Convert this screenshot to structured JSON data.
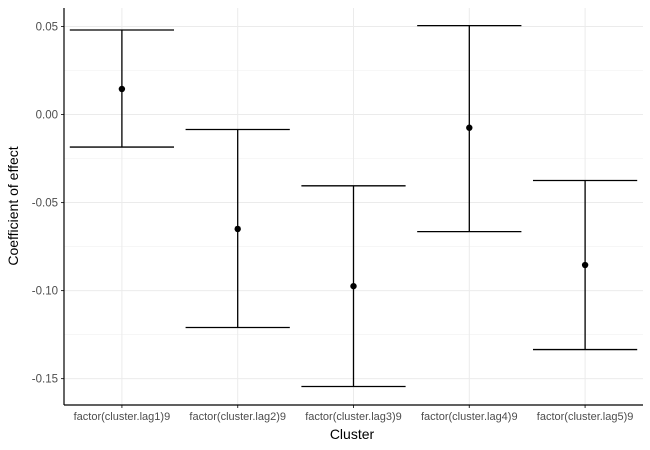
{
  "chart_data": {
    "type": "errorbar",
    "xlabel": "Cluster",
    "ylabel": "Coefficient of effect",
    "categories": [
      "factor(cluster.lag1)9",
      "factor(cluster.lag2)9",
      "factor(cluster.lag3)9",
      "factor(cluster.lag4)9",
      "factor(cluster.lag5)9"
    ],
    "estimate": [
      0.0145,
      -0.065,
      -0.0975,
      -0.0075,
      -0.0855
    ],
    "lower": [
      -0.0185,
      -0.121,
      -0.1545,
      -0.0665,
      -0.1335
    ],
    "upper": [
      0.048,
      -0.0085,
      -0.0405,
      0.0505,
      -0.0375
    ],
    "ylim": [
      -0.165,
      0.0605
    ],
    "yticks": [
      0.05,
      0.0,
      -0.05,
      -0.1,
      -0.15
    ],
    "ytick_labels": [
      "0.05",
      "0.00",
      "-0.05",
      "-0.10",
      "-0.15"
    ],
    "grid": true,
    "legend": "none",
    "colors": {
      "mark": "#000000",
      "grid_major": "#ebebeb",
      "grid_minor": "#f5f5f5",
      "axis": "#000000",
      "tick_label": "#4d4d4d"
    }
  }
}
